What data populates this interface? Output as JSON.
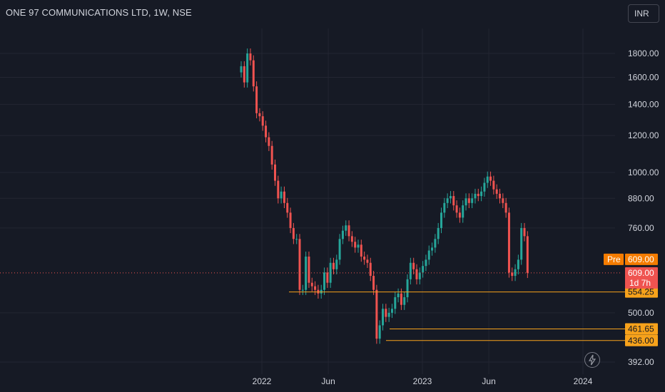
{
  "header": {
    "title": "ONE 97 COMMUNICATIONS LTD, 1W, NSE",
    "currency": "INR"
  },
  "colors": {
    "background": "#161a25",
    "up": "#26a69a",
    "down": "#ef5350",
    "level": "#f7a21b",
    "grid": "#232632",
    "axis_text": "#d1d4dc"
  },
  "labels": {
    "pre_tag": "Pre",
    "pre_price": "609.00",
    "last_price": "609.00",
    "countdown": "1d 7h"
  },
  "levels": [
    {
      "price": 554.25,
      "label": "554.25"
    },
    {
      "price": 461.65,
      "label": "461.65"
    },
    {
      "price": 436.0,
      "label": "436.00"
    }
  ],
  "chart_data": {
    "type": "candlestick",
    "scale": "log",
    "ylim": [
      380,
      2000
    ],
    "y_ticks": [
      {
        "value": 1800,
        "label": "1800.00"
      },
      {
        "value": 1600,
        "label": "1600.00"
      },
      {
        "value": 1400,
        "label": "1400.00"
      },
      {
        "value": 1200,
        "label": "1200.00"
      },
      {
        "value": 1000,
        "label": "1000.00"
      },
      {
        "value": 880,
        "label": "880.00"
      },
      {
        "value": 760,
        "label": "760.00"
      },
      {
        "value": 500,
        "label": "500.00"
      },
      {
        "value": 392,
        "label": "392.00"
      }
    ],
    "x_ticks": [
      {
        "date": "2022-01-01",
        "label": "2022"
      },
      {
        "date": "2022-06-01",
        "label": "Jun"
      },
      {
        "date": "2023-01-01",
        "label": "2023"
      },
      {
        "date": "2023-06-01",
        "label": "Jun"
      },
      {
        "date": "2024-01-01",
        "label": "2024"
      }
    ],
    "x_range": [
      "2021-06-01",
      "2024-04-15"
    ],
    "start_date": "2021-11-15",
    "interval": "1W",
    "close_path": [
      1690,
      1560,
      1800,
      1740,
      1530,
      1340,
      1320,
      1260,
      1190,
      1140,
      1040,
      960,
      880,
      910,
      860,
      820,
      760,
      720,
      720,
      560,
      560,
      660,
      580,
      570,
      560,
      550,
      560,
      610,
      580,
      640,
      620,
      650,
      720,
      750,
      770,
      730,
      710,
      690,
      700,
      660,
      650,
      640,
      600,
      560,
      440,
      470,
      510,
      490,
      500,
      510,
      540,
      550,
      520,
      540,
      590,
      640,
      620,
      590,
      610,
      630,
      650,
      680,
      690,
      720,
      760,
      820,
      860,
      880,
      890,
      850,
      820,
      800,
      850,
      880,
      860,
      880,
      900,
      890,
      910,
      950,
      980,
      960,
      920,
      900,
      880,
      860,
      820,
      610,
      600,
      620,
      650,
      760,
      730,
      609
    ],
    "last": 609.0
  }
}
